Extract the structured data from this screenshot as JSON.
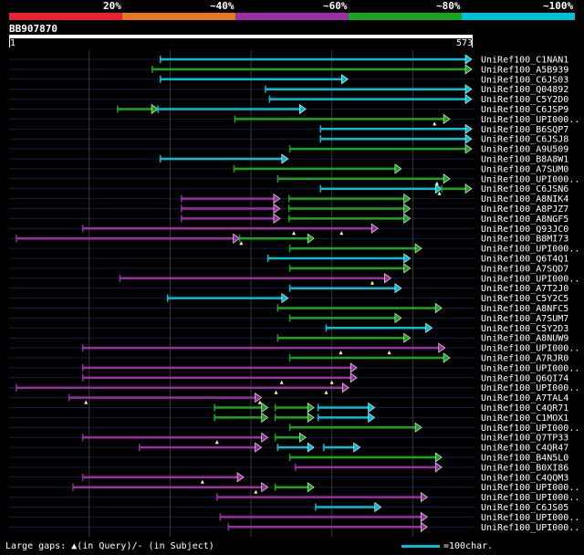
{
  "chart_data": {
    "type": "alignment-overview",
    "query_id": "BB907870",
    "query_length": 573,
    "axis": {
      "start_label": "1",
      "end_label": "573",
      "xlim": [
        1,
        573
      ]
    },
    "identity_legend": [
      {
        "label": "20%",
        "color": "#e8222e"
      },
      {
        "label": "~40%",
        "color": "#e87722"
      },
      {
        "label": "~60%",
        "color": "#9a2ea3"
      },
      {
        "label": "~80%",
        "color": "#1aa51e"
      },
      {
        "label": "~100%",
        "color": "#00bfd8"
      }
    ],
    "hits": [
      {
        "name": "UniRef100_C1NAN1",
        "segments": [
          [
            188,
            573,
            4
          ]
        ],
        "gaps": []
      },
      {
        "name": "UniRef100_A5B939",
        "segments": [
          [
            178,
            573,
            3
          ]
        ],
        "gaps": []
      },
      {
        "name": "UniRef100_C6JS03",
        "segments": [
          [
            188,
            420,
            4
          ]
        ],
        "gaps": []
      },
      {
        "name": "UniRef100_Q04892",
        "segments": [
          [
            318,
            573,
            4
          ]
        ],
        "gaps": []
      },
      {
        "name": "UniRef100_C5Y2D0",
        "segments": [
          [
            323,
            573,
            4
          ]
        ],
        "gaps": []
      },
      {
        "name": "UniRef100_C6JSP9",
        "segments": [
          [
            135,
            185,
            3
          ],
          [
            185,
            368,
            4
          ]
        ],
        "gaps": []
      },
      {
        "name": "UniRef100_UPI000..",
        "segments": [
          [
            280,
            546,
            3
          ]
        ],
        "gaps": [
          527
        ]
      },
      {
        "name": "UniRef100_B6SQP7",
        "segments": [
          [
            386,
            573,
            4
          ]
        ],
        "gaps": []
      },
      {
        "name": "UniRef100_C6JSJ8",
        "segments": [
          [
            386,
            573,
            4
          ]
        ],
        "gaps": []
      },
      {
        "name": "UniRef100_A9U509",
        "segments": [
          [
            348,
            573,
            3
          ]
        ],
        "gaps": []
      },
      {
        "name": "UniRef100_B8A8W1",
        "segments": [
          [
            188,
            346,
            4
          ]
        ],
        "gaps": []
      },
      {
        "name": "UniRef100_A7SUM0",
        "segments": [
          [
            279,
            486,
            3
          ]
        ],
        "gaps": []
      },
      {
        "name": "UniRef100_UPI000..",
        "segments": [
          [
            333,
            546,
            3
          ]
        ],
        "gaps": [
          530
        ]
      },
      {
        "name": "UniRef100_C6JSN6",
        "segments": [
          [
            386,
            536,
            4
          ],
          [
            536,
            573,
            3
          ]
        ],
        "gaps": [
          533
        ]
      },
      {
        "name": "UniRef100_A8NIK4",
        "segments": [
          [
            214,
            336,
            2
          ],
          [
            347,
            497,
            3
          ]
        ],
        "gaps": []
      },
      {
        "name": "UniRef100_A8PJZ7",
        "segments": [
          [
            214,
            336,
            2
          ],
          [
            347,
            497,
            3
          ]
        ],
        "gaps": []
      },
      {
        "name": "UniRef100_A8NGF5",
        "segments": [
          [
            214,
            336,
            2
          ],
          [
            347,
            497,
            3
          ]
        ],
        "gaps": []
      },
      {
        "name": "UniRef100_Q93JC0",
        "segments": [
          [
            92,
            457,
            2
          ]
        ],
        "gaps": [
          353,
          412
        ]
      },
      {
        "name": "UniRef100_B8MI73",
        "segments": [
          [
            10,
            286,
            2
          ],
          [
            286,
            378,
            3
          ]
        ],
        "gaps": [
          288
        ]
      },
      {
        "name": "UniRef100_UPI000..",
        "segments": [
          [
            348,
            511,
            3
          ]
        ],
        "gaps": []
      },
      {
        "name": "UniRef100_Q6T4Q1",
        "segments": [
          [
            321,
            497,
            4
          ]
        ],
        "gaps": []
      },
      {
        "name": "UniRef100_A7SQD7",
        "segments": [
          [
            348,
            497,
            3
          ]
        ],
        "gaps": []
      },
      {
        "name": "UniRef100_UPI000..",
        "segments": [
          [
            138,
            473,
            2
          ]
        ],
        "gaps": [
          450
        ]
      },
      {
        "name": "UniRef100_A7T2J0",
        "segments": [
          [
            348,
            486,
            4
          ]
        ],
        "gaps": []
      },
      {
        "name": "UniRef100_C5Y2C5",
        "segments": [
          [
            197,
            346,
            4
          ]
        ],
        "gaps": []
      },
      {
        "name": "UniRef100_A8NFC5",
        "segments": [
          [
            333,
            536,
            3
          ]
        ],
        "gaps": []
      },
      {
        "name": "UniRef100_A7SUM7",
        "segments": [
          [
            348,
            486,
            3
          ]
        ],
        "gaps": []
      },
      {
        "name": "UniRef100_C5Y2D3",
        "segments": [
          [
            393,
            524,
            4
          ]
        ],
        "gaps": []
      },
      {
        "name": "UniRef100_A8NUW9",
        "segments": [
          [
            333,
            497,
            3
          ]
        ],
        "gaps": []
      },
      {
        "name": "UniRef100_UPI000..",
        "segments": [
          [
            92,
            540,
            2
          ]
        ],
        "gaps": [
          411,
          471
        ]
      },
      {
        "name": "UniRef100_A7RJR0",
        "segments": [
          [
            348,
            546,
            3
          ]
        ],
        "gaps": []
      },
      {
        "name": "UniRef100_UPI000..",
        "segments": [
          [
            92,
            431,
            2
          ]
        ],
        "gaps": []
      },
      {
        "name": "UniRef100_Q6QI74",
        "segments": [
          [
            92,
            431,
            2
          ]
        ],
        "gaps": [
          338,
          400
        ]
      },
      {
        "name": "UniRef100_UPI000..",
        "segments": [
          [
            10,
            421,
            2
          ]
        ],
        "gaps": [
          331,
          393
        ]
      },
      {
        "name": "UniRef100_A7TAL4",
        "segments": [
          [
            75,
            313,
            2
          ]
        ],
        "gaps": [
          96,
          311
        ]
      },
      {
        "name": "UniRef100_C4QR71",
        "segments": [
          [
            255,
            321,
            3
          ],
          [
            330,
            378,
            3
          ],
          [
            383,
            453,
            4
          ]
        ],
        "gaps": []
      },
      {
        "name": "UniRef100_C1MOX1",
        "segments": [
          [
            255,
            321,
            3
          ],
          [
            330,
            378,
            3
          ],
          [
            383,
            453,
            4
          ]
        ],
        "gaps": []
      },
      {
        "name": "UniRef100_UPI000..",
        "segments": [
          [
            348,
            511,
            3
          ]
        ],
        "gaps": []
      },
      {
        "name": "UniRef100_Q7TP33",
        "segments": [
          [
            92,
            321,
            2
          ],
          [
            330,
            368,
            3
          ]
        ],
        "gaps": [
          258
        ]
      },
      {
        "name": "UniRef100_C4QR47",
        "segments": [
          [
            162,
            313,
            2
          ],
          [
            333,
            378,
            4
          ],
          [
            390,
            435,
            4
          ]
        ],
        "gaps": []
      },
      {
        "name": "UniRef100_B4N5L0",
        "segments": [
          [
            348,
            536,
            3
          ]
        ],
        "gaps": []
      },
      {
        "name": "UniRef100_B0XI86",
        "segments": [
          [
            355,
            536,
            2
          ]
        ],
        "gaps": []
      },
      {
        "name": "UniRef100_C4QQM3",
        "segments": [
          [
            92,
            291,
            2
          ]
        ],
        "gaps": [
          240
        ]
      },
      {
        "name": "UniRef100_UPI000..",
        "segments": [
          [
            80,
            321,
            2
          ],
          [
            330,
            378,
            3
          ]
        ],
        "gaps": [
          306
        ]
      },
      {
        "name": "UniRef100_UPI000..",
        "segments": [
          [
            258,
            518,
            2
          ]
        ],
        "gaps": []
      },
      {
        "name": "UniRef100_C6JS05",
        "segments": [
          [
            380,
            461,
            4
          ]
        ],
        "gaps": []
      },
      {
        "name": "UniRef100_UPI000..",
        "segments": [
          [
            262,
            518,
            2
          ]
        ],
        "gaps": []
      },
      {
        "name": "UniRef100_UPI000..",
        "segments": [
          [
            272,
            518,
            2
          ]
        ],
        "gaps": []
      }
    ]
  },
  "footer": {
    "large_gaps_text": "Large gaps: ▲(in Query)/- (in Subject)",
    "scale_text": "=100char."
  }
}
